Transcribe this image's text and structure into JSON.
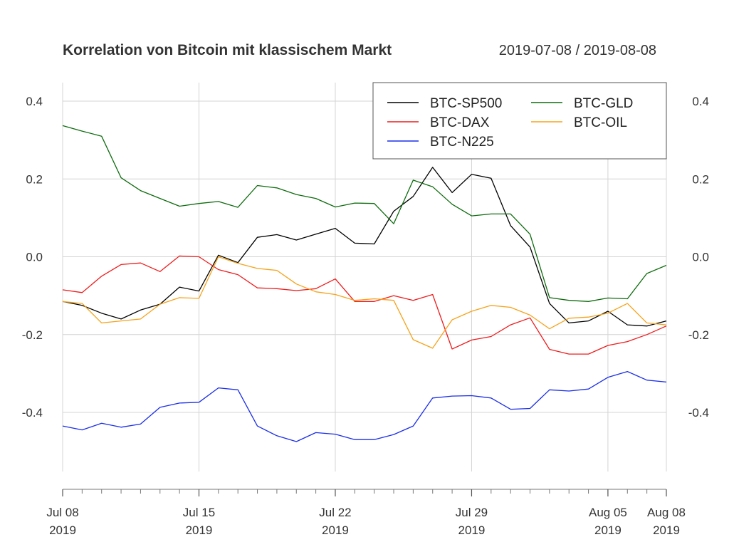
{
  "chart_data": {
    "type": "line",
    "title": "Korrelation von Bitcoin mit klassischem Markt",
    "date_range": "2019-07-08 / 2019-08-08",
    "xlabel": "",
    "ylabel": "",
    "ylim": [
      -0.55,
      0.45
    ],
    "yticks": [
      0.4,
      0.2,
      0.0,
      -0.2,
      -0.4
    ],
    "ytick_labels": [
      "0.4",
      "0.2",
      "0.0",
      "-0.2",
      "-0.4"
    ],
    "grid": true,
    "legend_position": "top-right",
    "x_ticks": [
      {
        "date": "2019-07-08",
        "line1": "Jul 08",
        "line2": "2019"
      },
      {
        "date": "2019-07-15",
        "line1": "Jul 15",
        "line2": "2019"
      },
      {
        "date": "2019-07-22",
        "line1": "Jul 22",
        "line2": "2019"
      },
      {
        "date": "2019-07-29",
        "line1": "Jul 29",
        "line2": "2019"
      },
      {
        "date": "2019-08-05",
        "line1": "Aug 05",
        "line2": "2019"
      },
      {
        "date": "2019-08-08",
        "line1": "Aug 08",
        "line2": "2019"
      }
    ],
    "x": [
      "2019-07-08",
      "2019-07-09",
      "2019-07-10",
      "2019-07-11",
      "2019-07-12",
      "2019-07-13",
      "2019-07-14",
      "2019-07-15",
      "2019-07-16",
      "2019-07-17",
      "2019-07-18",
      "2019-07-19",
      "2019-07-20",
      "2019-07-21",
      "2019-07-22",
      "2019-07-23",
      "2019-07-24",
      "2019-07-25",
      "2019-07-26",
      "2019-07-27",
      "2019-07-28",
      "2019-07-29",
      "2019-07-30",
      "2019-07-31",
      "2019-08-01",
      "2019-08-02",
      "2019-08-03",
      "2019-08-04",
      "2019-08-05",
      "2019-08-06",
      "2019-08-07",
      "2019-08-08"
    ],
    "series": [
      {
        "name": "BTC-SP500",
        "color": "#000000",
        "values": [
          -0.115,
          -0.125,
          -0.145,
          -0.16,
          -0.137,
          -0.122,
          -0.078,
          -0.088,
          0.004,
          -0.015,
          0.05,
          0.057,
          0.043,
          0.058,
          0.073,
          0.035,
          0.033,
          0.117,
          0.155,
          0.23,
          0.165,
          0.212,
          0.202,
          0.08,
          0.025,
          -0.12,
          -0.17,
          -0.165,
          -0.14,
          -0.175,
          -0.178,
          -0.165
        ]
      },
      {
        "name": "BTC-DAX",
        "color": "#ee1c1c",
        "values": [
          -0.085,
          -0.092,
          -0.05,
          -0.02,
          -0.016,
          -0.038,
          0.002,
          0.0,
          -0.033,
          -0.046,
          -0.08,
          -0.082,
          -0.087,
          -0.082,
          -0.057,
          -0.115,
          -0.115,
          -0.1,
          -0.112,
          -0.097,
          -0.237,
          -0.214,
          -0.205,
          -0.175,
          -0.157,
          -0.238,
          -0.25,
          -0.25,
          -0.228,
          -0.218,
          -0.2,
          -0.178
        ]
      },
      {
        "name": "BTC-N225",
        "color": "#1a2ee8",
        "values": [
          -0.435,
          -0.445,
          -0.428,
          -0.438,
          -0.43,
          -0.387,
          -0.376,
          -0.374,
          -0.337,
          -0.342,
          -0.435,
          -0.46,
          -0.475,
          -0.452,
          -0.456,
          -0.47,
          -0.47,
          -0.457,
          -0.435,
          -0.363,
          -0.358,
          -0.357,
          -0.363,
          -0.392,
          -0.39,
          -0.342,
          -0.345,
          -0.34,
          -0.31,
          -0.295,
          -0.317,
          -0.322
        ]
      },
      {
        "name": "BTC-GLD",
        "color": "#0d6b0d",
        "values": [
          0.337,
          0.323,
          0.31,
          0.203,
          0.17,
          0.15,
          0.13,
          0.137,
          0.142,
          0.127,
          0.183,
          0.177,
          0.16,
          0.15,
          0.128,
          0.138,
          0.137,
          0.085,
          0.197,
          0.18,
          0.135,
          0.105,
          0.11,
          0.11,
          0.058,
          -0.105,
          -0.112,
          -0.115,
          -0.106,
          -0.108,
          -0.043,
          -0.022
        ]
      },
      {
        "name": "BTC-OIL",
        "color": "#f5a31a",
        "values": [
          -0.115,
          -0.12,
          -0.17,
          -0.165,
          -0.16,
          -0.122,
          -0.105,
          -0.107,
          0.0,
          -0.017,
          -0.03,
          -0.035,
          -0.07,
          -0.09,
          -0.097,
          -0.112,
          -0.108,
          -0.112,
          -0.213,
          -0.235,
          -0.162,
          -0.14,
          -0.125,
          -0.13,
          -0.15,
          -0.185,
          -0.158,
          -0.155,
          -0.145,
          -0.12,
          -0.17,
          -0.175
        ]
      }
    ]
  }
}
